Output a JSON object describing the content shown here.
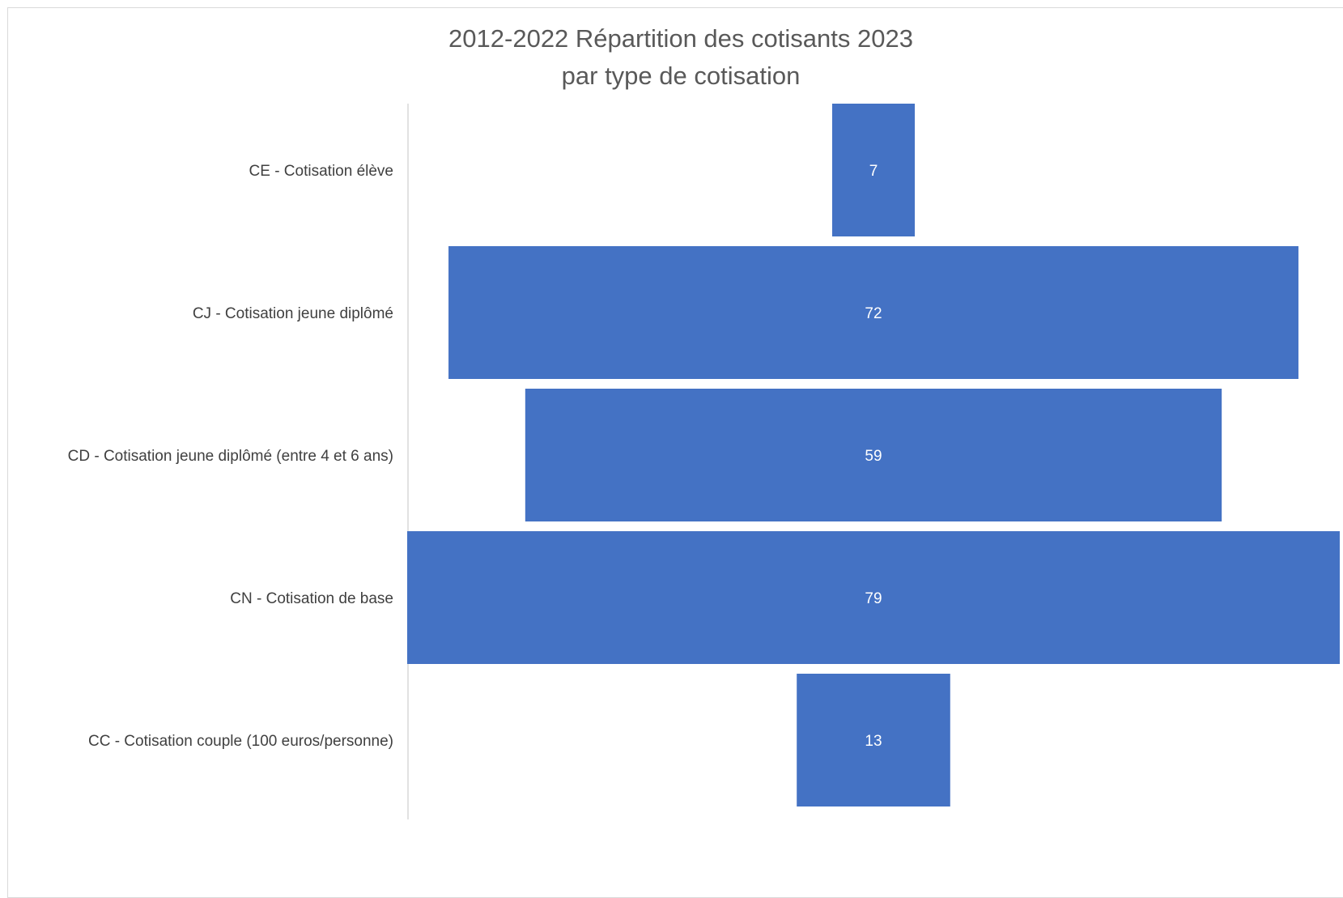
{
  "chart_data": {
    "type": "bar",
    "orientation": "horizontal",
    "style": "funnel",
    "title": "2012-2022 Répartition des cotisants 2023",
    "subtitle": "par type de cotisation",
    "categories": [
      "CE - Cotisation élève",
      "CJ - Cotisation jeune diplômé",
      "CD - Cotisation jeune diplômé (entre 4 et 6 ans)",
      "CN - Cotisation de base",
      "CC - Cotisation couple (100 euros/personne)"
    ],
    "values": [
      7,
      72,
      59,
      79,
      13
    ],
    "data_labels": [
      "7",
      "72",
      "59",
      "79",
      "13"
    ],
    "bar_color": "#4472c4",
    "grid": false,
    "legend": "none"
  }
}
